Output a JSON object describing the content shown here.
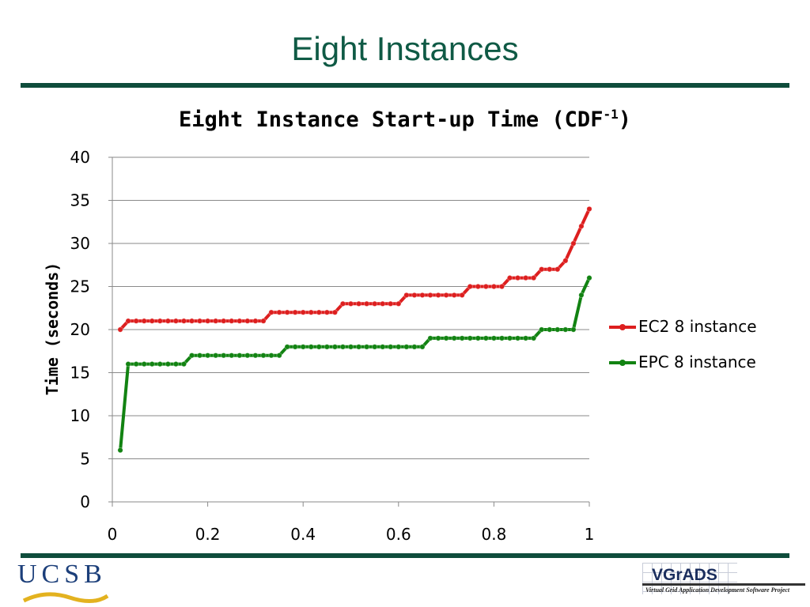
{
  "slide": {
    "title": "Eight Instances"
  },
  "logos": {
    "left": "UCSB",
    "right_name": "VGrADS",
    "right_caption": "Virtual Grid Application Development Software Project"
  },
  "colors": {
    "title": "#0f5a45",
    "rule": "#0f4d3c",
    "ec2": "#dd1f1f",
    "epc": "#128312"
  },
  "chart_data": {
    "type": "line",
    "title": "Eight Instance Start-up Time (CDF",
    "title_superscript": "-1",
    "title_suffix": ")",
    "xlabel": "",
    "ylabel": "Time (seconds)",
    "xlim": [
      0,
      1
    ],
    "ylim": [
      0,
      40
    ],
    "x_ticks": [
      "0",
      "0.2",
      "0.4",
      "0.6",
      "0.8",
      "1"
    ],
    "y_ticks": [
      "0",
      "5",
      "10",
      "15",
      "20",
      "25",
      "30",
      "35",
      "40"
    ],
    "grid": "horizontal",
    "legend_position": "right",
    "series": [
      {
        "name": "EC2 8 instance",
        "color": "#dd1f1f",
        "x": [
          0.0167,
          0.0333,
          0.05,
          0.0667,
          0.0833,
          0.1,
          0.1167,
          0.1333,
          0.15,
          0.1667,
          0.1833,
          0.2,
          0.2167,
          0.2333,
          0.25,
          0.2667,
          0.2833,
          0.3,
          0.3167,
          0.3333,
          0.35,
          0.3667,
          0.3833,
          0.4,
          0.4167,
          0.4333,
          0.45,
          0.4667,
          0.4833,
          0.5,
          0.5167,
          0.5333,
          0.55,
          0.5667,
          0.5833,
          0.6,
          0.6167,
          0.6333,
          0.65,
          0.6667,
          0.6833,
          0.7,
          0.7167,
          0.7333,
          0.75,
          0.7667,
          0.7833,
          0.8,
          0.8167,
          0.8333,
          0.85,
          0.8667,
          0.8833,
          0.9,
          0.9167,
          0.9333,
          0.95,
          0.9667,
          0.9833,
          1.0
        ],
        "y": [
          20,
          21,
          21,
          21,
          21,
          21,
          21,
          21,
          21,
          21,
          21,
          21,
          21,
          21,
          21,
          21,
          21,
          21,
          21,
          22,
          22,
          22,
          22,
          22,
          22,
          22,
          22,
          22,
          23,
          23,
          23,
          23,
          23,
          23,
          23,
          23,
          24,
          24,
          24,
          24,
          24,
          24,
          24,
          24,
          25,
          25,
          25,
          25,
          25,
          26,
          26,
          26,
          26,
          27,
          27,
          27,
          28,
          30,
          32,
          34
        ]
      },
      {
        "name": "EPC 8 instance",
        "color": "#128312",
        "x": [
          0.0167,
          0.0333,
          0.05,
          0.0667,
          0.0833,
          0.1,
          0.1167,
          0.1333,
          0.15,
          0.1667,
          0.1833,
          0.2,
          0.2167,
          0.2333,
          0.25,
          0.2667,
          0.2833,
          0.3,
          0.3167,
          0.3333,
          0.35,
          0.3667,
          0.3833,
          0.4,
          0.4167,
          0.4333,
          0.45,
          0.4667,
          0.4833,
          0.5,
          0.5167,
          0.5333,
          0.55,
          0.5667,
          0.5833,
          0.6,
          0.6167,
          0.6333,
          0.65,
          0.6667,
          0.6833,
          0.7,
          0.7167,
          0.7333,
          0.75,
          0.7667,
          0.7833,
          0.8,
          0.8167,
          0.8333,
          0.85,
          0.8667,
          0.8833,
          0.9,
          0.9167,
          0.9333,
          0.95,
          0.9667,
          0.9833,
          1.0
        ],
        "y": [
          6,
          16,
          16,
          16,
          16,
          16,
          16,
          16,
          16,
          17,
          17,
          17,
          17,
          17,
          17,
          17,
          17,
          17,
          17,
          17,
          17,
          18,
          18,
          18,
          18,
          18,
          18,
          18,
          18,
          18,
          18,
          18,
          18,
          18,
          18,
          18,
          18,
          18,
          18,
          19,
          19,
          19,
          19,
          19,
          19,
          19,
          19,
          19,
          19,
          19,
          19,
          19,
          19,
          20,
          20,
          20,
          20,
          20,
          24,
          26
        ]
      }
    ]
  }
}
